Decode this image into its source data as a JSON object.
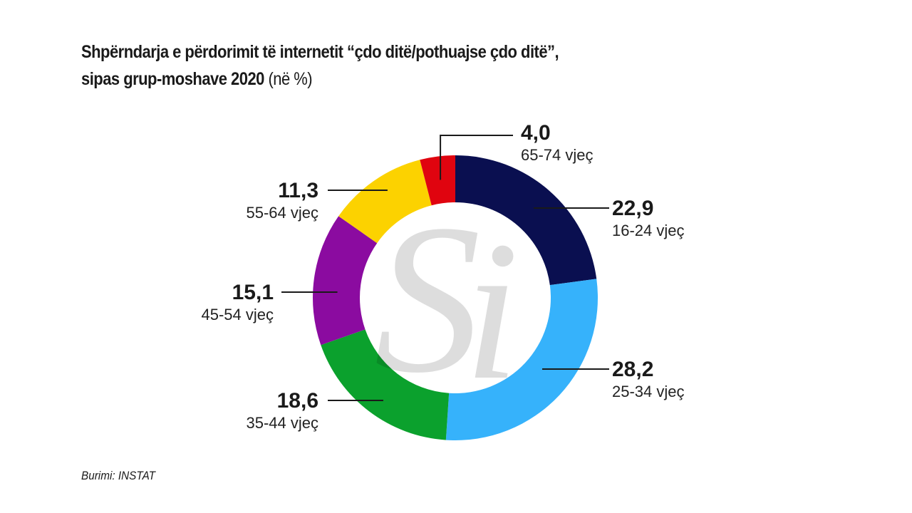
{
  "title_line1": "Shpërndarja e përdorimit të internetit “çdo ditë/pothuajse çdo ditë”,",
  "title_line2": "sipas grup-moshave 2020",
  "title_unit": "(në %)",
  "source": "Burimi: INSTAT",
  "chart_data": {
    "type": "pie",
    "variant": "donut",
    "title": "Shpërndarja e përdorimit të internetit “çdo ditë/pothuajse çdo ditë”, sipas grup-moshave 2020 (në %)",
    "categories": [
      "16-24 vjeç",
      "25-34 vjeç",
      "35-44 vjeç",
      "45-54 vjeç",
      "55-64 vjeç",
      "65-74 vjeç"
    ],
    "values": [
      22.9,
      28.2,
      18.6,
      15.1,
      11.3,
      4.0
    ],
    "value_labels": [
      "22,9",
      "28,2",
      "18,6",
      "15,1",
      "11,3",
      "4,0"
    ],
    "colors": [
      "#0a0f50",
      "#36b2fb",
      "#0ba12d",
      "#8b0ba0",
      "#fcd200",
      "#e0040f"
    ],
    "start": "top, clockwise"
  }
}
